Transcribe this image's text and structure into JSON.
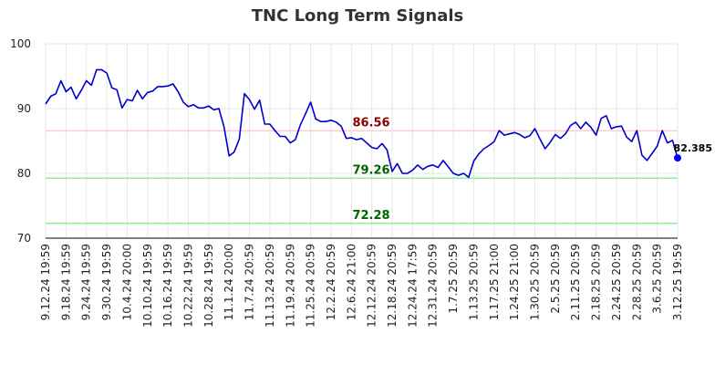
{
  "chart_data": {
    "type": "line",
    "title": "TNC Long Term Signals",
    "xlabel": "",
    "ylabel": "",
    "ylim": [
      70,
      100
    ],
    "yticks": [
      70,
      80,
      90,
      100
    ],
    "grid": true,
    "line_color": "#0000cc",
    "xtick_labels": [
      "9.12.24 19:59",
      "9.18.24 19:59",
      "9.24.24 19:59",
      "9.30.24 19:59",
      "10.4.24 20:00",
      "10.10.24 19:59",
      "10.16.24 19:59",
      "10.22.24 19:59",
      "10.28.24 19:59",
      "11.1.24 20:00",
      "11.7.24 20:59",
      "11.13.24 20:59",
      "11.19.24 20:59",
      "11.25.24 20:59",
      "12.2.24 20:59",
      "12.6.24 21:00",
      "12.12.24 20:59",
      "12.18.24 20:59",
      "12.24.24 17:59",
      "12.31.24 20:59",
      "1.7.25 20:59",
      "1.13.25 20:59",
      "1.17.25 21:00",
      "1.24.25 21:00",
      "1.30.25 20:59",
      "2.5.25 20:59",
      "2.11.25 20:59",
      "2.18.25 20:59",
      "2.24.25 20:59",
      "2.28.25 20:59",
      "3.6.25 20:59",
      "3.12.25 19:59"
    ],
    "values": [
      90.7,
      91.9,
      92.3,
      94.3,
      92.6,
      93.3,
      91.5,
      92.8,
      94.3,
      93.6,
      96.0,
      96.0,
      95.5,
      93.2,
      92.9,
      90.1,
      91.4,
      91.2,
      92.8,
      91.5,
      92.5,
      92.7,
      93.4,
      93.4,
      93.5,
      93.8,
      92.6,
      91.0,
      90.3,
      90.6,
      90.1,
      90.1,
      90.4,
      89.8,
      90.0,
      87.2,
      82.7,
      83.3,
      85.3,
      92.3,
      91.4,
      89.9,
      91.3,
      87.6,
      87.6,
      86.6,
      85.7,
      85.7,
      84.7,
      85.2,
      87.5,
      89.2,
      91.0,
      88.4,
      88.0,
      88.0,
      88.2,
      87.9,
      87.3,
      85.4,
      85.5,
      85.2,
      85.4,
      84.7,
      84.0,
      83.8,
      84.6,
      83.6,
      80.3,
      81.5,
      80.0,
      80.0,
      80.5,
      81.3,
      80.6,
      81.1,
      81.3,
      80.9,
      82.0,
      81.0,
      80.0,
      79.7,
      80.0,
      79.4,
      81.9,
      83.0,
      83.8,
      84.3,
      84.9,
      86.6,
      85.9,
      86.1,
      86.3,
      86.0,
      85.5,
      85.8,
      86.9,
      85.3,
      83.8,
      84.8,
      86.0,
      85.4,
      86.1,
      87.4,
      87.9,
      86.9,
      87.9,
      87.1,
      85.9,
      88.5,
      88.9,
      86.9,
      87.2,
      87.3,
      85.6,
      84.9,
      86.6,
      82.8,
      82.0,
      83.1,
      84.2,
      86.6,
      84.7,
      85.1,
      82.385
    ],
    "reference_lines": [
      {
        "label": "86.56",
        "value": 86.56,
        "color": "#ffcccc",
        "label_color": "#8b0000"
      },
      {
        "label": "79.26",
        "value": 79.26,
        "color": "#90ee90",
        "label_color": "#006400"
      },
      {
        "label": "72.28",
        "value": 72.28,
        "color": "#90ee90",
        "label_color": "#006400"
      }
    ],
    "last_point": {
      "label": "82.385",
      "value": 82.385,
      "color": "#0000ff"
    }
  }
}
